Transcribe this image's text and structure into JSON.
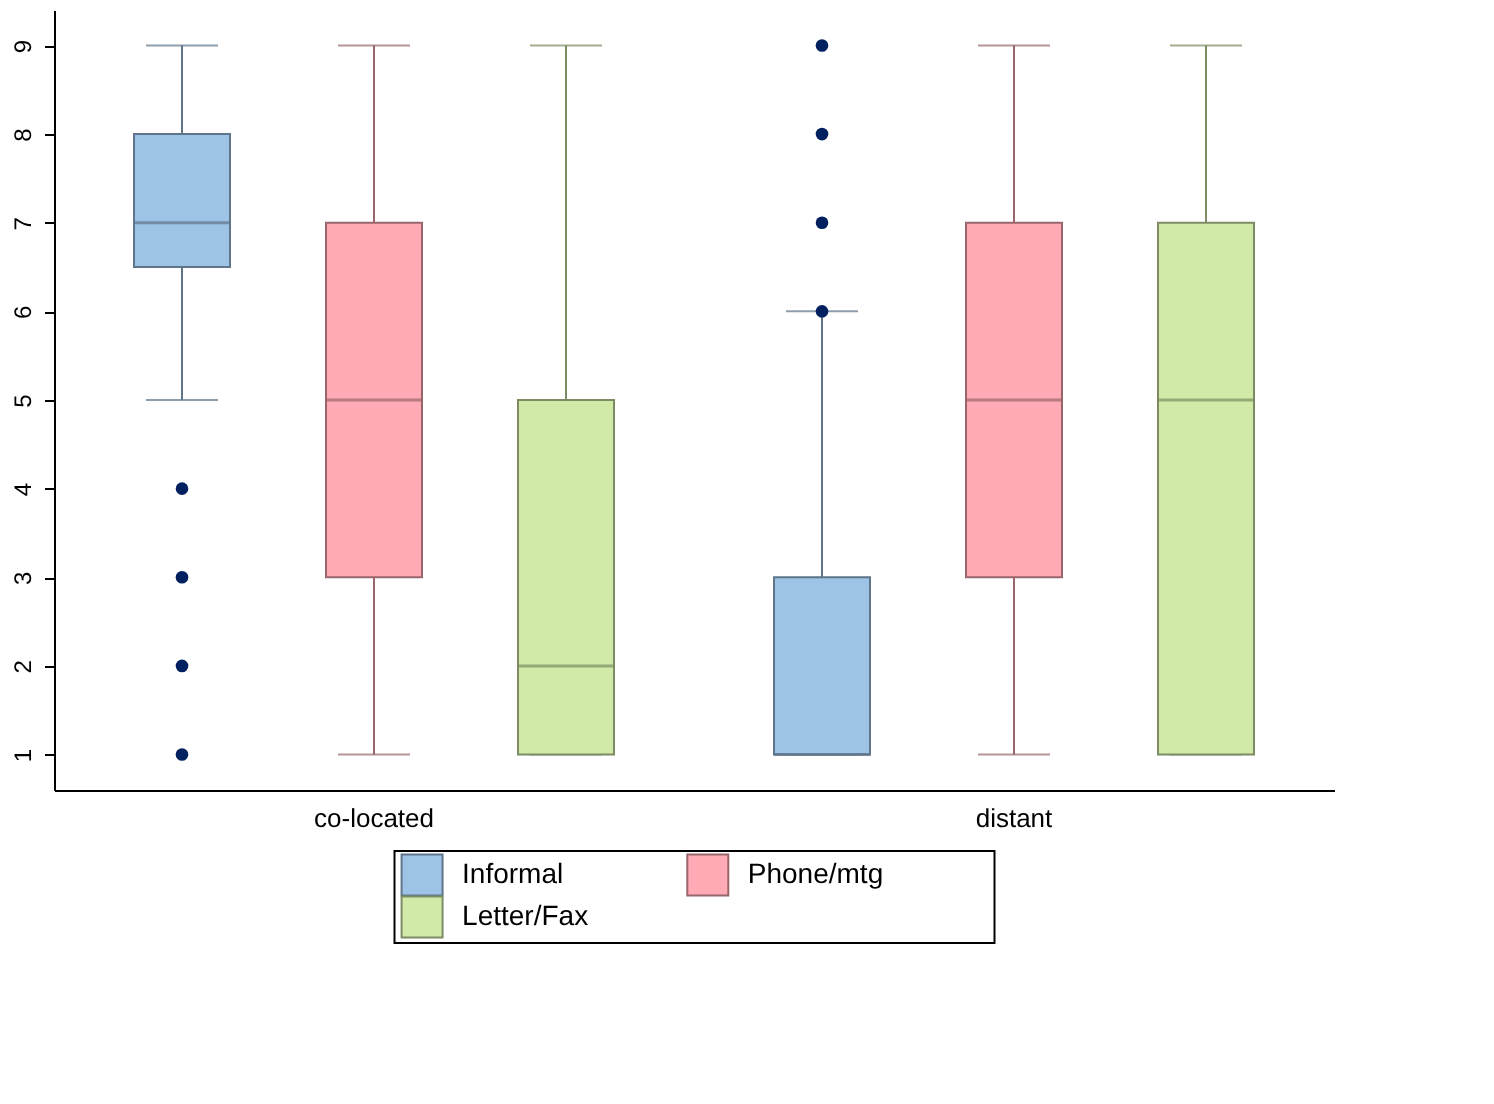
{
  "chart_data": {
    "type": "box",
    "categories": [
      "co-located",
      "distant"
    ],
    "series": [
      {
        "name": "Informal",
        "color": "#9dc3e6",
        "boxes": [
          {
            "low": 5,
            "q1": 6.5,
            "median": 7,
            "q3": 8,
            "high": 9,
            "outliers": [
              1,
              2,
              3,
              4
            ]
          },
          {
            "low": 1,
            "q1": 1,
            "median": 1,
            "q3": 3,
            "high": 6,
            "outliers": [
              6,
              7,
              8,
              9
            ]
          }
        ]
      },
      {
        "name": "Phone/mtg",
        "color": "#ffaab4",
        "boxes": [
          {
            "low": 1,
            "q1": 3,
            "median": 5,
            "q3": 7,
            "high": 9
          },
          {
            "low": 1,
            "q1": 3,
            "median": 5,
            "q3": 7,
            "high": 9
          }
        ]
      },
      {
        "name": "Letter/Fax",
        "color": "#d1eaa8",
        "boxes": [
          {
            "low": 1,
            "q1": 1,
            "median": 2,
            "q3": 5,
            "high": 9
          },
          {
            "low": 1,
            "q1": 1,
            "median": 5,
            "q3": 7,
            "high": 9
          }
        ]
      }
    ],
    "ylim": [
      0.6,
      9.4
    ],
    "yticks": [
      1,
      2,
      3,
      4,
      5,
      6,
      7,
      8,
      9
    ],
    "grid": false,
    "legend": "bottom"
  }
}
